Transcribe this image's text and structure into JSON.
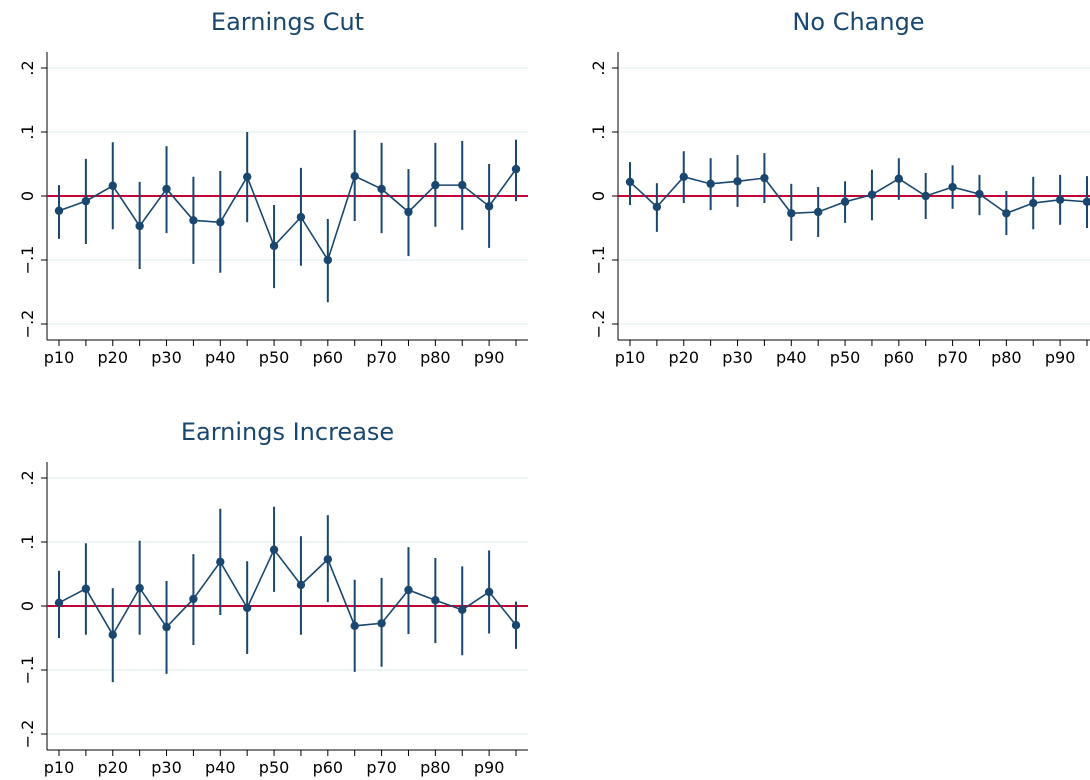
{
  "chart_data": [
    {
      "type": "errorbar-line",
      "title": "Earnings Cut",
      "categories": [
        "p10",
        null,
        "p20",
        null,
        "p30",
        null,
        "p40",
        null,
        "p50",
        null,
        "p60",
        null,
        "p70",
        null,
        "p80",
        null,
        "p90",
        null
      ],
      "values": [
        -0.023,
        -0.008,
        0.016,
        -0.047,
        0.011,
        -0.038,
        -0.041,
        0.03,
        -0.078,
        -0.033,
        -0.1,
        0.031,
        0.011,
        -0.025,
        0.017,
        0.017,
        -0.016,
        0.042
      ],
      "ci_low": [
        -0.067,
        -0.075,
        -0.052,
        -0.114,
        -0.058,
        -0.106,
        -0.12,
        -0.041,
        -0.144,
        -0.109,
        -0.166,
        -0.039,
        -0.058,
        -0.094,
        -0.048,
        -0.053,
        -0.081,
        -0.008
      ],
      "ci_high": [
        0.017,
        0.058,
        0.084,
        0.022,
        0.078,
        0.03,
        0.039,
        0.1,
        -0.014,
        0.044,
        -0.036,
        0.103,
        0.083,
        0.042,
        0.083,
        0.086,
        0.05,
        0.088
      ],
      "color": "#1a476f",
      "refline": 0,
      "refline_color": "#c10534",
      "ylim": [
        -0.225,
        0.225
      ],
      "yticks": [
        {
          "value": -0.2,
          "label": "−.2"
        },
        {
          "value": -0.1,
          "label": "−.1"
        },
        0,
        {
          "value": 0.1,
          "label": ".1"
        },
        {
          "value": 0.2,
          "label": ".2"
        }
      ],
      "grid": true
    },
    {
      "type": "errorbar-line",
      "title": "No Change",
      "categories": [
        "p10",
        null,
        "p20",
        null,
        "p30",
        null,
        "p40",
        null,
        "p50",
        null,
        "p60",
        null,
        "p70",
        null,
        "p80",
        null,
        "p90",
        null
      ],
      "values": [
        0.022,
        -0.017,
        0.03,
        0.019,
        0.023,
        0.028,
        -0.027,
        -0.025,
        -0.009,
        0.002,
        0.027,
        0.0,
        0.014,
        0.003,
        -0.027,
        -0.011,
        -0.006,
        -0.009
      ],
      "ci_low": [
        -0.014,
        -0.056,
        -0.011,
        -0.022,
        -0.017,
        -0.011,
        -0.07,
        -0.064,
        -0.042,
        -0.038,
        -0.006,
        -0.036,
        -0.02,
        -0.03,
        -0.061,
        -0.052,
        -0.045,
        -0.05
      ],
      "ci_high": [
        0.053,
        0.02,
        0.07,
        0.059,
        0.064,
        0.067,
        0.019,
        0.014,
        0.023,
        0.041,
        0.059,
        0.036,
        0.048,
        0.033,
        0.008,
        0.03,
        0.033,
        0.031
      ],
      "color": "#1a476f",
      "refline": 0,
      "refline_color": "#c10534",
      "ylim": [
        -0.225,
        0.225
      ],
      "yticks": [
        {
          "value": -0.2,
          "label": "−.2"
        },
        {
          "value": -0.1,
          "label": "−.1"
        },
        0,
        {
          "value": 0.1,
          "label": ".1"
        },
        {
          "value": 0.2,
          "label": ".2"
        }
      ],
      "grid": true
    },
    {
      "type": "errorbar-line",
      "title": "Earnings Increase",
      "categories": [
        "p10",
        null,
        "p20",
        null,
        "p30",
        null,
        "p40",
        null,
        "p50",
        null,
        "p60",
        null,
        "p70",
        null,
        "p80",
        null,
        "p90",
        null
      ],
      "values": [
        0.005,
        0.027,
        -0.045,
        0.028,
        -0.033,
        0.011,
        0.069,
        -0.003,
        0.088,
        0.033,
        0.073,
        -0.031,
        -0.027,
        0.025,
        0.009,
        -0.006,
        0.022,
        -0.03
      ],
      "ci_low": [
        -0.05,
        -0.045,
        -0.119,
        -0.045,
        -0.106,
        -0.061,
        -0.014,
        -0.075,
        0.022,
        -0.045,
        0.006,
        -0.103,
        -0.095,
        -0.044,
        -0.058,
        -0.077,
        -0.043,
        -0.067
      ],
      "ci_high": [
        0.055,
        0.098,
        0.028,
        0.102,
        0.039,
        0.081,
        0.152,
        0.07,
        0.155,
        0.109,
        0.142,
        0.041,
        0.044,
        0.092,
        0.075,
        0.062,
        0.087,
        0.007
      ],
      "color": "#1a476f",
      "refline": 0,
      "refline_color": "#c10534",
      "ylim": [
        -0.225,
        0.225
      ],
      "yticks": [
        {
          "value": -0.2,
          "label": "−.2"
        },
        {
          "value": -0.1,
          "label": "−.1"
        },
        0,
        {
          "value": 0.1,
          "label": ".1"
        },
        {
          "value": 0.2,
          "label": ".2"
        }
      ],
      "grid": true
    }
  ]
}
